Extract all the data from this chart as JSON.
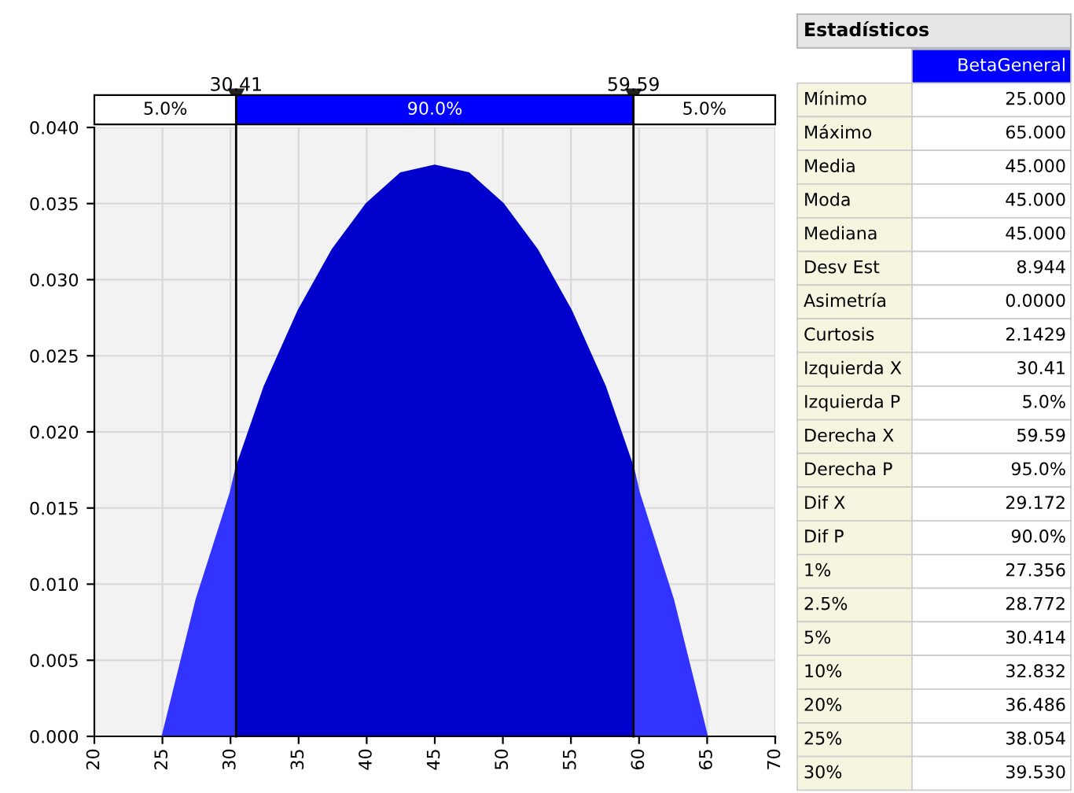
{
  "chart_data": [
    {
      "type": "area",
      "series": [
        {
          "color": "#3333ff",
          "x": [
            20,
            25,
            27.5,
            30,
            30.41
          ],
          "values": [
            0,
            0,
            0.009,
            0.016,
            0.0176
          ]
        },
        {
          "color": "#0000cc",
          "x": [
            30.41,
            32.5,
            35,
            37.5,
            40,
            42.5,
            45,
            47.5,
            50,
            52.5,
            55,
            57.5,
            59.59
          ],
          "values": [
            0.0176,
            0.023,
            0.028,
            0.032,
            0.035,
            0.037,
            0.0375,
            0.037,
            0.035,
            0.032,
            0.028,
            0.023,
            0.0176
          ]
        },
        {
          "color": "#3333ff",
          "x": [
            59.59,
            60,
            62.5,
            65,
            70
          ],
          "values": [
            0.0176,
            0.016,
            0.009,
            0,
            0
          ]
        }
      ],
      "xlim": [
        20,
        70
      ],
      "xticks": [
        20,
        25,
        30,
        35,
        40,
        45,
        50,
        55,
        60,
        65,
        70
      ],
      "ylim": [
        0,
        0.04
      ],
      "yticks": [
        {
          "value": 0,
          "label": "0.000"
        },
        {
          "value": 0.005,
          "label": "0.005"
        },
        {
          "value": 0.01,
          "label": "0.010"
        },
        {
          "value": 0.015,
          "label": "0.015"
        },
        {
          "value": 0.02,
          "label": "0.020"
        },
        {
          "value": 0.025,
          "label": "0.025"
        },
        {
          "value": 0.03,
          "label": "0.030"
        },
        {
          "value": 0.035,
          "label": "0.035"
        },
        {
          "value": 0.04,
          "label": "0.040"
        }
      ],
      "ref_lines": [
        {
          "axis": "x",
          "value": 30.41,
          "label": "30.41"
        },
        {
          "axis": "x",
          "value": 59.59,
          "label": "59.59"
        }
      ],
      "annotations": [
        "5.0%",
        "90.0%",
        "5.0%"
      ],
      "grid": true
    },
    {
      "type": "other",
      "title": "Estadísticos",
      "subtitle": "BetaGeneral",
      "categories": [
        "Mínimo",
        "Máximo",
        "Media",
        "Moda",
        "Mediana",
        "Desv Est",
        "Asimetría",
        "Curtosis",
        "Izquierda X",
        "Izquierda P",
        "Derecha X",
        "Derecha P",
        "Dif X",
        "Dif P",
        "1%",
        "2.5%",
        "5%",
        "10%",
        "20%",
        "25%",
        "30%"
      ],
      "value_labels": [
        "25.000",
        "65.000",
        "45.000",
        "45.000",
        "45.000",
        "8.944",
        "0.0000",
        "2.1429",
        "30.41",
        "5.0%",
        "59.59",
        "95.0%",
        "29.172",
        "90.0%",
        "27.356",
        "28.772",
        "30.414",
        "32.832",
        "36.486",
        "38.054",
        "39.530"
      ]
    }
  ]
}
